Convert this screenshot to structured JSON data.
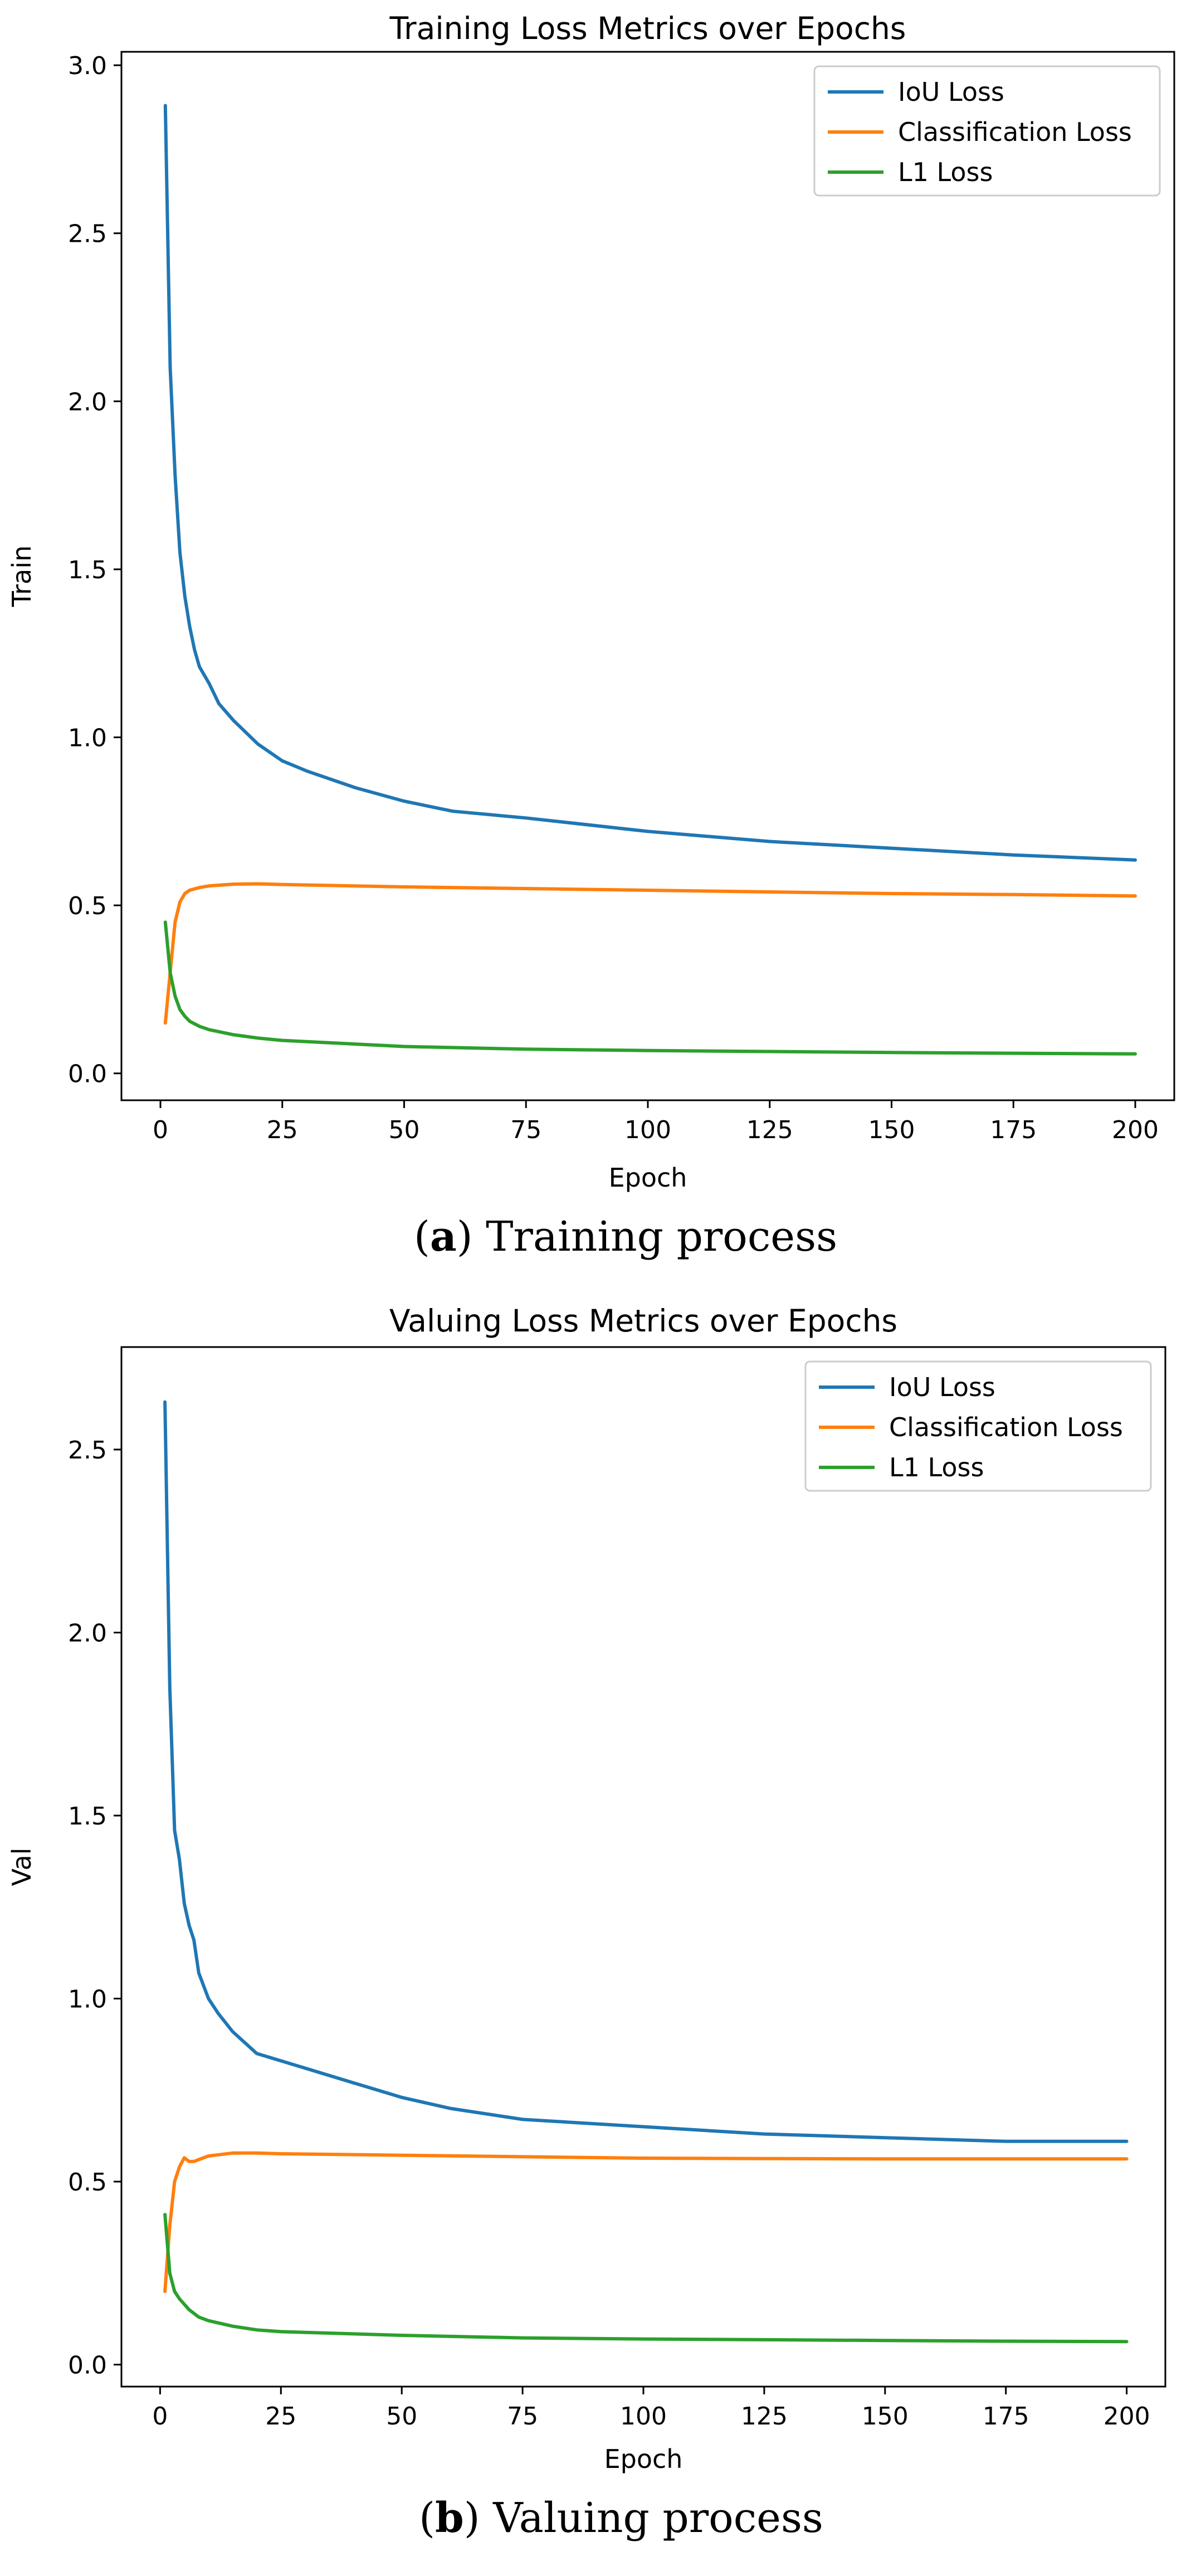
{
  "chart_data": [
    {
      "type": "line",
      "title": "Training Loss Metrics over Epochs",
      "xlabel": "Epoch",
      "ylabel": "Train",
      "xlim": [
        -8,
        208
      ],
      "ylim": [
        -0.08,
        3.04
      ],
      "xticks": [
        0,
        25,
        50,
        75,
        100,
        125,
        150,
        175,
        200
      ],
      "xtick_labels": [
        "0",
        "25",
        "50",
        "75",
        "100",
        "125",
        "150",
        "175",
        "200"
      ],
      "yticks": [
        0.0,
        0.5,
        1.0,
        1.5,
        2.0,
        2.5,
        3.0
      ],
      "ytick_labels": [
        "0.0",
        "0.5",
        "1.0",
        "1.5",
        "2.0",
        "2.5",
        "3.0"
      ],
      "legend_position": "top-right",
      "caption_letter": "a",
      "caption_text": "Training process",
      "series": [
        {
          "name": "IoU Loss",
          "color": "#1f77b4",
          "x": [
            1,
            2,
            3,
            4,
            5,
            6,
            7,
            8,
            10,
            12,
            15,
            20,
            25,
            30,
            40,
            50,
            60,
            75,
            100,
            125,
            150,
            175,
            200
          ],
          "y": [
            2.88,
            2.1,
            1.78,
            1.55,
            1.42,
            1.33,
            1.26,
            1.21,
            1.16,
            1.1,
            1.05,
            0.98,
            0.93,
            0.9,
            0.85,
            0.81,
            0.78,
            0.76,
            0.72,
            0.69,
            0.67,
            0.65,
            0.635
          ]
        },
        {
          "name": "Classification Loss",
          "color": "#ff7f0e",
          "x": [
            1,
            2,
            3,
            4,
            5,
            6,
            8,
            10,
            15,
            20,
            25,
            50,
            75,
            100,
            125,
            150,
            175,
            200
          ],
          "y": [
            0.15,
            0.3,
            0.45,
            0.51,
            0.535,
            0.545,
            0.553,
            0.558,
            0.563,
            0.564,
            0.562,
            0.555,
            0.55,
            0.545,
            0.54,
            0.535,
            0.532,
            0.528
          ]
        },
        {
          "name": "L1 Loss",
          "color": "#2ca02c",
          "x": [
            1,
            2,
            3,
            4,
            5,
            6,
            8,
            10,
            15,
            20,
            25,
            50,
            75,
            100,
            125,
            150,
            175,
            200
          ],
          "y": [
            0.45,
            0.3,
            0.23,
            0.19,
            0.17,
            0.155,
            0.14,
            0.13,
            0.115,
            0.105,
            0.098,
            0.08,
            0.072,
            0.068,
            0.065,
            0.062,
            0.06,
            0.058
          ]
        }
      ]
    },
    {
      "type": "line",
      "title": "Valuing Loss Metrics over Epochs",
      "xlabel": "Epoch",
      "ylabel": "Val",
      "xlim": [
        -8,
        208
      ],
      "ylim": [
        -0.06,
        2.78
      ],
      "xticks": [
        0,
        25,
        50,
        75,
        100,
        125,
        150,
        175,
        200
      ],
      "xtick_labels": [
        "0",
        "25",
        "50",
        "75",
        "100",
        "125",
        "150",
        "175",
        "200"
      ],
      "yticks": [
        0.0,
        0.5,
        1.0,
        1.5,
        2.0,
        2.5
      ],
      "ytick_labels": [
        "0.0",
        "0.5",
        "1.0",
        "1.5",
        "2.0",
        "2.5"
      ],
      "legend_position": "top-right",
      "caption_letter": "b",
      "caption_text": "Valuing process",
      "series": [
        {
          "name": "IoU Loss",
          "color": "#1f77b4",
          "x": [
            1,
            2,
            3,
            4,
            5,
            6,
            7,
            8,
            10,
            12,
            15,
            20,
            25,
            30,
            40,
            50,
            60,
            75,
            100,
            125,
            150,
            175,
            200
          ],
          "y": [
            2.63,
            1.85,
            1.46,
            1.38,
            1.26,
            1.2,
            1.16,
            1.07,
            1.0,
            0.96,
            0.91,
            0.85,
            0.83,
            0.81,
            0.77,
            0.73,
            0.7,
            0.67,
            0.65,
            0.63,
            0.62,
            0.61,
            0.61
          ]
        },
        {
          "name": "Classification Loss",
          "color": "#ff7f0e",
          "x": [
            1,
            2,
            3,
            4,
            5,
            6,
            7,
            8,
            10,
            15,
            20,
            25,
            50,
            75,
            100,
            125,
            150,
            175,
            200
          ],
          "y": [
            0.2,
            0.38,
            0.5,
            0.54,
            0.565,
            0.555,
            0.555,
            0.56,
            0.57,
            0.578,
            0.578,
            0.576,
            0.572,
            0.568,
            0.564,
            0.563,
            0.562,
            0.562,
            0.562
          ]
        },
        {
          "name": "L1 Loss",
          "color": "#2ca02c",
          "x": [
            1,
            2,
            3,
            4,
            5,
            6,
            8,
            10,
            15,
            20,
            25,
            50,
            75,
            100,
            125,
            150,
            175,
            200
          ],
          "y": [
            0.41,
            0.25,
            0.2,
            0.18,
            0.165,
            0.15,
            0.13,
            0.12,
            0.105,
            0.095,
            0.09,
            0.08,
            0.073,
            0.07,
            0.068,
            0.066,
            0.064,
            0.063
          ]
        }
      ]
    }
  ]
}
